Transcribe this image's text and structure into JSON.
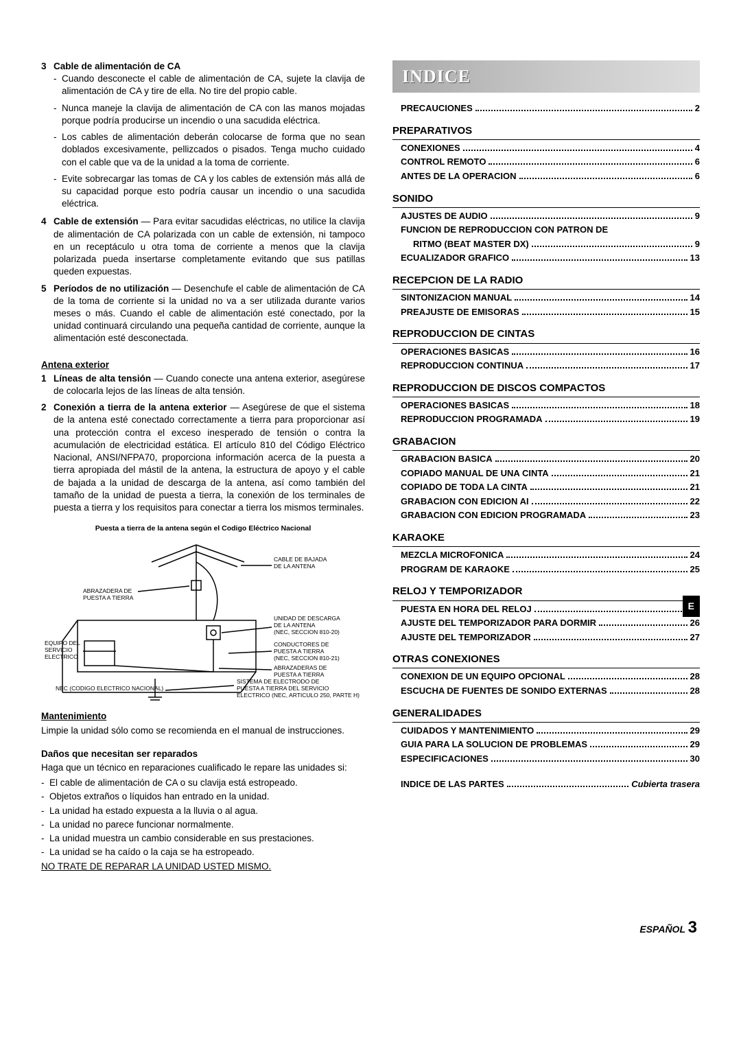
{
  "left": {
    "item3": {
      "num": "3",
      "title": "Cable de alimentación de CA",
      "bullets": [
        "Cuando desconecte el cable de alimentación de CA, sujete la clavija de alimentación de CA y tire de ella. No tire del propio cable.",
        "Nunca maneje la clavija de alimentación de CA con las manos mojadas porque podría producirse un incendio o una sacudida eléctrica.",
        "Los cables de alimentación deberán colocarse de forma que no sean doblados excesivamente, pellizcados o pisados. Tenga mucho cuidado con el cable que va de la unidad a la toma de corriente.",
        "Evite sobrecargar las tomas de CA y los cables de extensión más allá de su capacidad porque esto podría causar un incendio o una sacudida eléctrica."
      ]
    },
    "item4": {
      "num": "4",
      "title": "Cable de extensión",
      "body": " — Para evitar sacudidas eléctricas, no utilice la clavija de alimentación de CA polarizada con un cable de extensión, ni tampoco en un receptáculo u otra toma de corriente a menos que la clavija polarizada pueda insertarse completamente evitando que sus patillas queden expuestas."
    },
    "item5": {
      "num": "5",
      "title": "Períodos de no utilización",
      "body": " — Desenchufe el cable de alimentación de CA de la toma de corriente si la unidad no va a ser utilizada durante varios meses o más. Cuando el cable de alimentación esté conectado, por la unidad continuará circulando una pequeña cantidad de corriente, aunque la alimentación esté desconectada."
    },
    "antena": {
      "heading": "Antena exterior",
      "i1num": "1",
      "i1title": "Líneas de alta tensión",
      "i1body": " — Cuando conecte una antena exterior, asegúrese de colocarla lejos de las líneas de alta tensión.",
      "i2num": "2",
      "i2title": "Conexión a tierra de la antena exterior",
      "i2body": " — Asegúrese de que el sistema de la antena esté conectado correctamente a tierra para proporcionar así una protección contra el exceso inesperado de tensión o contra la acumulación de electricidad estática. El artículo 810 del Código Eléctrico Nacional, ANSI/NFPA70, proporciona información acerca de la puesta a tierra apropiada del mástil de la antena, la estructura de apoyo y el cable de bajada a la unidad de descarga de la antena, así como también del tamaño de la unidad de puesta a tierra, la conexión de los terminales de puesta a tierra y los requisitos para conectar a tierra los mismos terminales."
    },
    "diagram_caption": "Puesta a tierra de la antena según el Codigo Eléctrico Nacional",
    "diagram_labels": {
      "l1a": "CABLE DE BAJADA",
      "l1b": "DE LA ANTENA",
      "l2a": "ABRAZADERA DE",
      "l2b": "PUESTA A TIERRA",
      "l3a": "UNIDAD DE DESCARGA",
      "l3b": "DE LA ANTENA",
      "l3c": "(NEC, SECCION 810-20)",
      "l4a": "EQUIPO DEL",
      "l4b": "SERVICIO",
      "l4c": "ELECTRICO",
      "l5a": "CONDUCTORES DE",
      "l5b": "PUESTA A TIERRA",
      "l5c": "(NEC, SECCION 810-21)",
      "l6a": "ABRAZADERAS DE",
      "l6b": "PUESTA A TIERRA",
      "l7a": "SISTEMA DE ELECTRODO DE",
      "l7b": "PUESTA A TIERRA DEL SERVICIO",
      "l7c": "ELECTRICO (NEC, ARTICULO 250, PARTE H)",
      "l8": "NEC (CODIGO ELECTRICO NACIONAL)"
    },
    "mant": {
      "heading": "Mantenimiento",
      "body": "Limpie la unidad sólo como se recomienda en el manual de instrucciones."
    },
    "danos": {
      "heading": "Daños que necesitan ser reparados",
      "intro": "Haga que un técnico en reparaciones cualificado le repare las unidades si:",
      "bullets": [
        "El cable de alimentación de CA o su clavija está estropeado.",
        "Objetos extraños o líquidos han entrado en la unidad.",
        "La unidad ha estado expuesta a la lluvia o al agua.",
        "La unidad no parece funcionar normalmente.",
        "La unidad muestra un cambio considerable en sus prestaciones.",
        "La unidad se ha caído o la caja se ha estropeado."
      ],
      "warning": "NO TRATE DE REPARAR LA UNIDAD USTED MISMO."
    }
  },
  "right": {
    "banner": "INDICE",
    "top": {
      "label": "PRECAUCIONES",
      "page": "2"
    },
    "tab": "E",
    "sections": [
      {
        "title": "PREPARATIVOS",
        "items": [
          {
            "label": "CONEXIONES",
            "page": "4"
          },
          {
            "label": "CONTROL REMOTO",
            "page": "6"
          },
          {
            "label": "ANTES DE LA OPERACION",
            "page": "6"
          }
        ]
      },
      {
        "title": "SONIDO",
        "items": [
          {
            "label": "AJUSTES DE AUDIO",
            "page": "9"
          },
          {
            "label": "FUNCION DE REPRODUCCION CON PATRON DE",
            "page": "",
            "nodots": true
          },
          {
            "label": "RITMO (BEAT MASTER DX)",
            "page": "9",
            "sub": true
          },
          {
            "label": "ECUALIZADOR GRAFICO",
            "page": "13"
          }
        ]
      },
      {
        "title": "RECEPCION DE LA RADIO",
        "items": [
          {
            "label": "SINTONIZACION MANUAL",
            "page": "14"
          },
          {
            "label": "PREAJUSTE DE EMISORAS",
            "page": "15"
          }
        ]
      },
      {
        "title": "REPRODUCCION DE CINTAS",
        "items": [
          {
            "label": "OPERACIONES BASICAS",
            "page": "16"
          },
          {
            "label": "REPRODUCCION CONTINUA",
            "page": "17"
          }
        ]
      },
      {
        "title": "REPRODUCCION DE DISCOS COMPACTOS",
        "items": [
          {
            "label": "OPERACIONES BASICAS",
            "page": "18"
          },
          {
            "label": "REPRODUCCION PROGRAMADA",
            "page": "19"
          }
        ]
      },
      {
        "title": "GRABACION",
        "items": [
          {
            "label": "GRABACION BASICA",
            "page": "20"
          },
          {
            "label": "COPIADO MANUAL DE UNA CINTA",
            "page": "21"
          },
          {
            "label": "COPIADO DE TODA LA CINTA",
            "page": "21"
          },
          {
            "label": "GRABACION CON EDICION AI",
            "page": "22"
          },
          {
            "label": "GRABACION CON EDICION PROGRAMADA",
            "page": "23"
          }
        ]
      },
      {
        "title": "KARAOKE",
        "items": [
          {
            "label": "MEZCLA MICROFONICA",
            "page": "24"
          },
          {
            "label": "PROGRAM DE KARAOKE",
            "page": "25"
          }
        ]
      },
      {
        "title": "RELOJ Y TEMPORIZADOR",
        "items": [
          {
            "label": "PUESTA EN HORA DEL RELOJ",
            "page": "26"
          },
          {
            "label": "AJUSTE DEL TEMPORIZADOR PARA DORMIR",
            "page": "26"
          },
          {
            "label": "AJUSTE DEL TEMPORIZADOR",
            "page": "27"
          }
        ]
      },
      {
        "title": "OTRAS CONEXIONES",
        "items": [
          {
            "label": "CONEXION DE UN EQUIPO OPCIONAL",
            "page": "28"
          },
          {
            "label": "ESCUCHA DE FUENTES DE SONIDO EXTERNAS",
            "page": "28"
          }
        ]
      },
      {
        "title": "GENERALIDADES",
        "items": [
          {
            "label": "CUIDADOS Y MANTENIMIENTO",
            "page": "29"
          },
          {
            "label": "GUIA PARA LA SOLUCION DE PROBLEMAS",
            "page": "29"
          },
          {
            "label": "ESPECIFICACIONES",
            "page": "30"
          }
        ]
      }
    ],
    "back": {
      "label": "INDICE DE LAS PARTES",
      "page": "Cubierta trasera"
    }
  },
  "footer": {
    "lang": "ESPAÑOL",
    "page": "3"
  }
}
